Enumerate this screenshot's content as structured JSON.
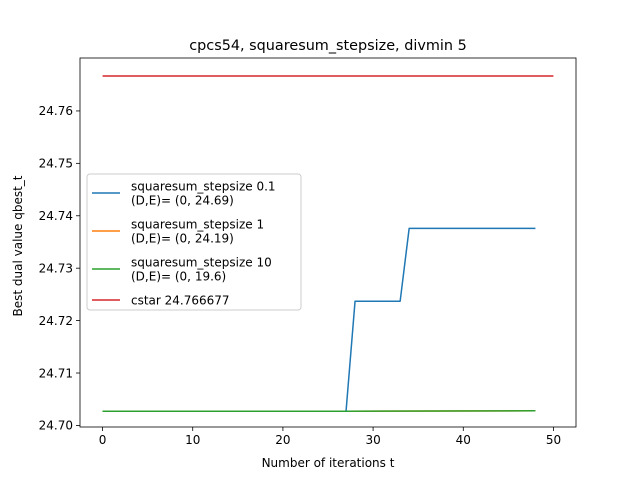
{
  "chart_data": {
    "type": "line",
    "title": "cpcs54, squaresum_stepsize, divmin 5",
    "xlabel": "Number of iterations t",
    "ylabel": "Best dual value qbest_t",
    "xlim": [
      -2.5,
      52.5
    ],
    "ylim": [
      24.6997,
      24.7701
    ],
    "xticks": [
      0,
      10,
      20,
      30,
      40,
      50
    ],
    "xtick_labels": [
      "0",
      "10",
      "20",
      "30",
      "40",
      "50"
    ],
    "yticks": [
      24.7,
      24.71,
      24.72,
      24.73,
      24.74,
      24.75,
      24.76
    ],
    "ytick_labels": [
      "24.70",
      "24.71",
      "24.72",
      "24.73",
      "24.74",
      "24.75",
      "24.76"
    ],
    "grid": false,
    "legend_position": "center-left",
    "series": [
      {
        "name": "squaresum_stepsize 0.1\n(D,E)= (0, 24.69)",
        "color": "#1f77b4",
        "x": [
          0,
          27,
          28,
          33,
          34,
          48
        ],
        "y": [
          24.7027,
          24.7027,
          24.7237,
          24.7237,
          24.7376,
          24.7376
        ]
      },
      {
        "name": "squaresum_stepsize 1\n(D,E)= (0, 24.19)",
        "color": "#ff7f0e",
        "x": [
          0,
          27,
          48
        ],
        "y": [
          24.7027,
          24.7027,
          24.7028
        ]
      },
      {
        "name": "squaresum_stepsize 10\n(D,E)= (0, 19.6)",
        "color": "#2ca02c",
        "x": [
          0,
          27,
          48
        ],
        "y": [
          24.7027,
          24.7027,
          24.7028
        ]
      },
      {
        "name": "cstar 24.766677",
        "color": "#d62728",
        "x": [
          0,
          50
        ],
        "y": [
          24.766677,
          24.766677
        ]
      }
    ]
  }
}
